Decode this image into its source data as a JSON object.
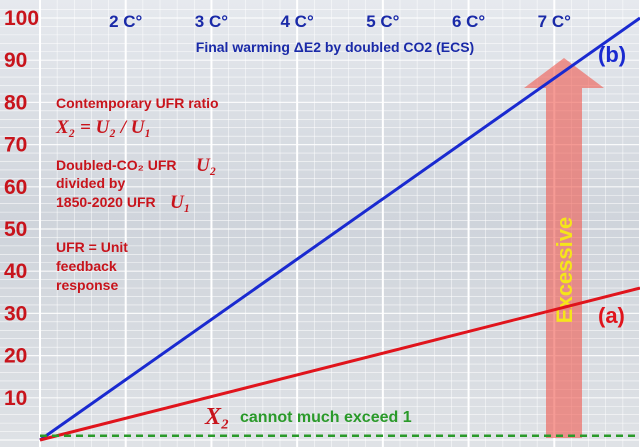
{
  "chart_data": {
    "type": "line",
    "title": "Final warming ΔE2 by doubled CO2 (ECS)",
    "x_ticks": [
      "2 C°",
      "3 C°",
      "4 C°",
      "5 C°",
      "6 C°",
      "7 C°"
    ],
    "y_ticks": [
      "10",
      "20",
      "30",
      "40",
      "50",
      "60",
      "70",
      "80",
      "90",
      "100"
    ],
    "ylim": [
      0,
      100
    ],
    "series": [
      {
        "name": "(b)",
        "color": "#1a2ad0",
        "x": [
          1,
          8
        ],
        "y": [
          0,
          100
        ]
      },
      {
        "name": "(a)",
        "color": "#e0141c",
        "x": [
          1,
          8
        ],
        "y": [
          0,
          36
        ]
      },
      {
        "name": "",
        "color": "#2a9a2a",
        "style": "dashed",
        "x": [
          1,
          8
        ],
        "y": [
          1,
          1
        ]
      }
    ],
    "annotations": {
      "ratio_title": "Contemporary UFR ratio",
      "ratio_eq": "X₂ = U₂ / U₁",
      "doubled_l1": "Doubled-CO₂ UFR",
      "doubled_sym": "U₂",
      "doubled_l2": "divided by",
      "doubled_l3": "1850-2020 UFR",
      "doubled_sym2": "U₁",
      "ufr_l1": "UFR = Unit",
      "ufr_l2": "feedback",
      "ufr_l3": "response",
      "excessive": "Excessive",
      "bottom_sym": "X₂",
      "bottom_text": "cannot much exceed 1"
    }
  }
}
